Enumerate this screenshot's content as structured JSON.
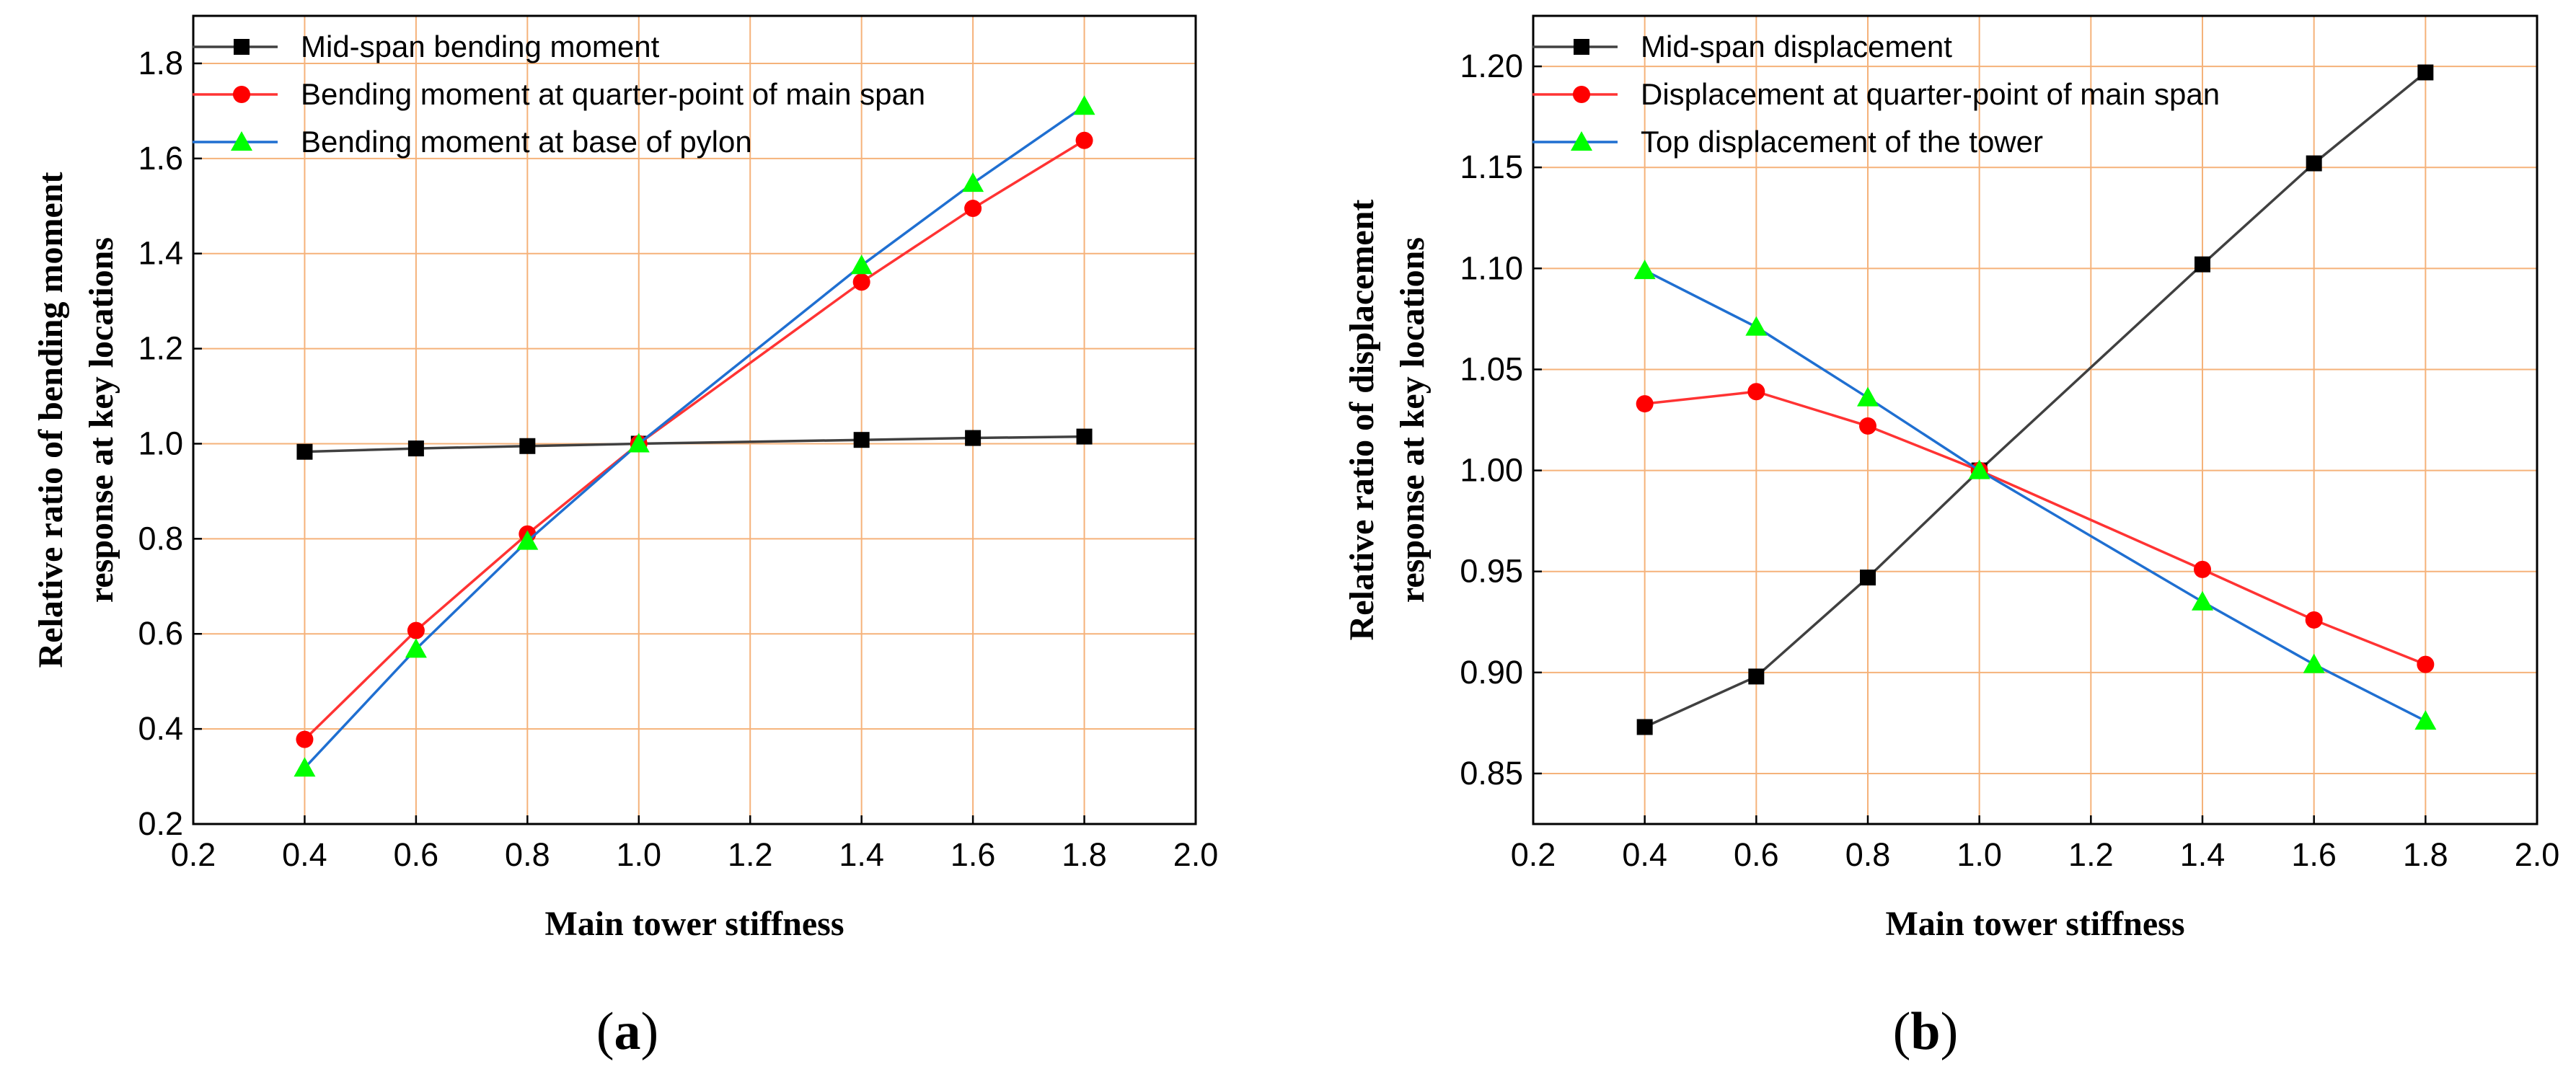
{
  "chart_data": [
    {
      "type": "line",
      "panel_label": "a",
      "xlabel": "Main tower stiffness",
      "ylabel": [
        "Relative ratio of bending moment",
        "response at key locations"
      ],
      "xlim": [
        0.2,
        2.0
      ],
      "ylim": [
        0.2,
        1.9
      ],
      "xticks": [
        "0.2",
        "0.4",
        "0.6",
        "0.8",
        "1.0",
        "1.2",
        "1.4",
        "1.6",
        "1.8",
        "2.0"
      ],
      "yticks": [
        "0.2",
        "0.4",
        "0.6",
        "0.8",
        "1.0",
        "1.2",
        "1.4",
        "1.6",
        "1.8"
      ],
      "grid": true,
      "legend_position": "top-left",
      "x": [
        0.4,
        0.6,
        0.8,
        1.0,
        1.4,
        1.6,
        1.8
      ],
      "series": [
        {
          "name": "Mid-span bending moment",
          "marker": "square",
          "line_color": "#404040",
          "marker_color": "#000000",
          "values": [
            0.983,
            0.99,
            0.995,
            1.0,
            1.008,
            1.012,
            1.015
          ]
        },
        {
          "name": "Bending moment at quarter-point of main span",
          "marker": "circle",
          "line_color": "#ff3333",
          "marker_color": "#ff0000",
          "values": [
            0.378,
            0.607,
            0.81,
            1.0,
            1.34,
            1.495,
            1.638
          ]
        },
        {
          "name": "Bending moment at base of pylon",
          "marker": "triangle",
          "line_color": "#1f6fd1",
          "marker_color": "#00ff00",
          "values": [
            0.318,
            0.568,
            0.795,
            1.0,
            1.375,
            1.548,
            1.71
          ]
        }
      ]
    },
    {
      "type": "line",
      "panel_label": "b",
      "xlabel": "Main tower stiffness",
      "ylabel": [
        "Relative ratio of displacement",
        "response at key locations"
      ],
      "xlim": [
        0.2,
        2.0
      ],
      "ylim": [
        0.825,
        1.225
      ],
      "xticks": [
        "0.2",
        "0.4",
        "0.6",
        "0.8",
        "1.0",
        "1.2",
        "1.4",
        "1.6",
        "1.8",
        "2.0"
      ],
      "yticks": [
        "0.85",
        "0.90",
        "0.95",
        "1.00",
        "1.05",
        "1.10",
        "1.15",
        "1.20"
      ],
      "grid": true,
      "legend_position": "top-left",
      "x": [
        0.4,
        0.6,
        0.8,
        1.0,
        1.4,
        1.6,
        1.8
      ],
      "series": [
        {
          "name": "Mid-span displacement",
          "marker": "square",
          "line_color": "#404040",
          "marker_color": "#000000",
          "values": [
            0.873,
            0.898,
            0.947,
            1.0,
            1.102,
            1.152,
            1.197
          ]
        },
        {
          "name": "Displacement at quarter-point of main span",
          "marker": "circle",
          "line_color": "#ff3333",
          "marker_color": "#ff0000",
          "values": [
            1.033,
            1.039,
            1.022,
            1.0,
            0.951,
            0.926,
            0.904
          ]
        },
        {
          "name": "Top displacement of the tower",
          "marker": "triangle",
          "line_color": "#1f6fd1",
          "marker_color": "#00ff00",
          "values": [
            1.099,
            1.071,
            1.036,
            1.0,
            0.935,
            0.904,
            0.876
          ]
        }
      ]
    }
  ],
  "styles": {
    "grid_color": "#f5b27a",
    "axis_color": "#000000"
  }
}
